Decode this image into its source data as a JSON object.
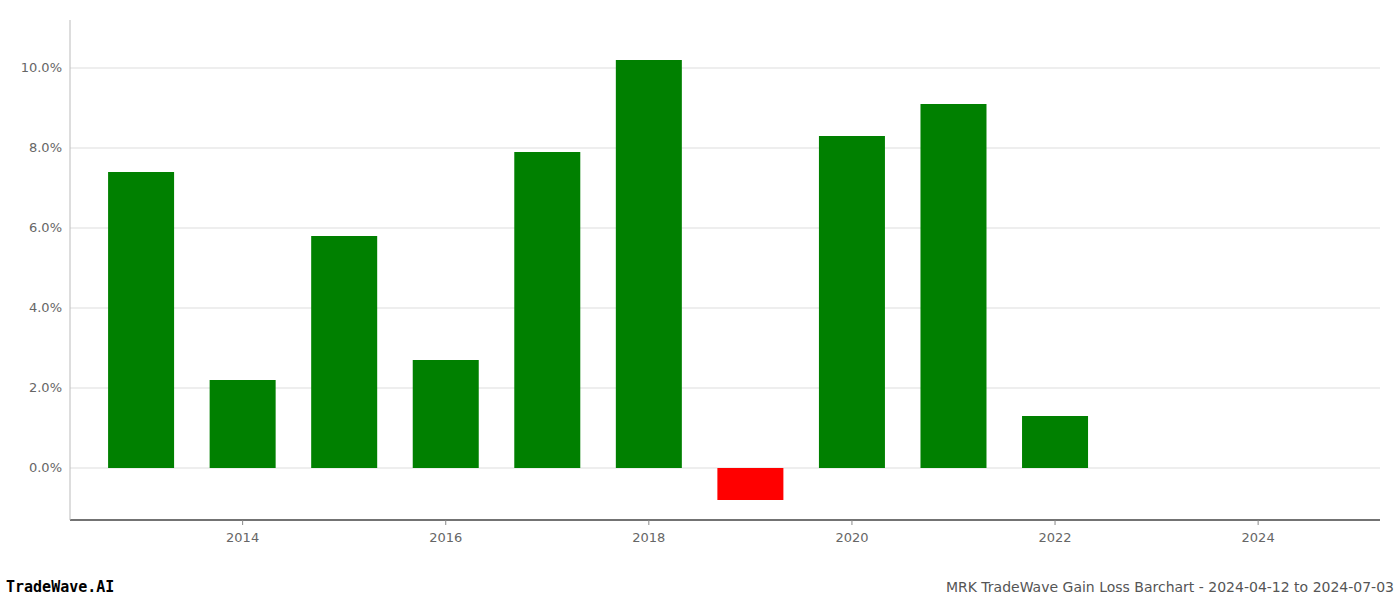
{
  "chart_data": {
    "type": "bar",
    "title": "MRK TradeWave Gain Loss Barchart - 2024-04-12 to 2024-07-03",
    "annotations": [
      "TradeWave.AI"
    ],
    "x": [
      2013,
      2014,
      2015,
      2016,
      2017,
      2018,
      2019,
      2020,
      2021,
      2022,
      2023
    ],
    "values": [
      0.074,
      0.022,
      0.058,
      0.027,
      0.079,
      0.102,
      -0.008,
      0.083,
      0.091,
      0.013,
      0.0
    ],
    "colors": [
      "#008000",
      "#008000",
      "#008000",
      "#008000",
      "#008000",
      "#008000",
      "#ff0000",
      "#008000",
      "#008000",
      "#008000",
      "#008000"
    ],
    "xlim": [
      2012.3,
      2025.2
    ],
    "ylim": [
      -0.013,
      0.112
    ],
    "xticks": [
      2014,
      2016,
      2018,
      2020,
      2022,
      2024
    ],
    "yticks": [
      {
        "value": 0.0,
        "label": "0.0%"
      },
      {
        "value": 0.02,
        "label": "2.0%"
      },
      {
        "value": 0.04,
        "label": "4.0%"
      },
      {
        "value": 0.06,
        "label": "6.0%"
      },
      {
        "value": 0.08,
        "label": "8.0%"
      },
      {
        "value": 0.1,
        "label": "10.0%"
      }
    ],
    "grid": true
  }
}
